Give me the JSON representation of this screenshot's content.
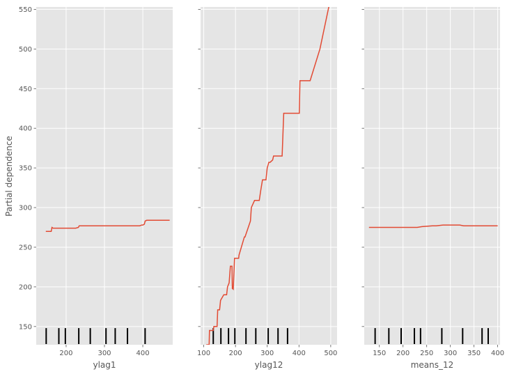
{
  "chart_data": {
    "type": "line",
    "ylabel": "Partial dependence",
    "ylim": [
      127,
      553
    ],
    "yticks": [
      150,
      200,
      250,
      300,
      350,
      400,
      450,
      500,
      550
    ],
    "grid": true,
    "line_color": "#e24a33",
    "rug_color": "#000000",
    "background": "#e5e5e5",
    "panels": [
      {
        "xlabel": "ylag1",
        "xlim": [
          122,
          478
        ],
        "xticks": [
          200,
          300,
          400
        ],
        "rug": [
          148,
          181,
          198,
          233,
          263,
          304,
          328,
          360,
          406
        ],
        "x": [
          147,
          161,
          162,
          163,
          166,
          168,
          225,
          232,
          233,
          234,
          240,
          300,
          392,
          397,
          400,
          404,
          406,
          410,
          420,
          470
        ],
        "y": [
          270,
          270,
          272,
          275,
          274,
          274,
          274,
          275,
          276,
          277,
          277,
          277,
          277,
          278,
          278,
          279,
          283,
          284,
          284,
          284
        ]
      },
      {
        "xlabel": "ylag12",
        "xlim": [
          90,
          520
        ],
        "xticks": [
          100,
          200,
          300,
          400,
          500
        ],
        "rug": [
          130,
          154,
          178,
          198,
          233,
          264,
          303,
          334,
          364
        ],
        "x": [
          108,
          117,
          118,
          130,
          132,
          142,
          144,
          150,
          153,
          163,
          166,
          172,
          175,
          180,
          184,
          189,
          190,
          193,
          197,
          198,
          210,
          211,
          228,
          230,
          247,
          250,
          260,
          275,
          279,
          285,
          296,
          300,
          305,
          309,
          317,
          320,
          330,
          347,
          352,
          401,
          403,
          435,
          466,
          494
        ],
        "y": [
          127,
          127,
          145,
          145,
          150,
          150,
          171,
          171,
          183,
          190,
          190,
          190,
          200,
          205,
          226,
          226,
          198,
          197,
          236,
          236,
          236,
          240,
          263,
          263,
          283,
          300,
          309,
          309,
          320,
          335,
          335,
          350,
          357,
          357,
          360,
          365,
          365,
          365,
          419,
          419,
          460,
          460,
          500,
          553
        ]
      },
      {
        "xlabel": "means_12",
        "xlim": [
          118,
          405
        ],
        "xticks": [
          150,
          200,
          250,
          300,
          350,
          400
        ],
        "rug": [
          141,
          170,
          196,
          224,
          237,
          282,
          326,
          367,
          380
        ],
        "x": [
          128,
          220,
          230,
          240,
          262,
          270,
          285,
          300,
          320,
          328,
          350,
          380,
          400
        ],
        "y": [
          275,
          275,
          275,
          276,
          277,
          277,
          278,
          278,
          278,
          277,
          277,
          277,
          277
        ]
      }
    ]
  }
}
